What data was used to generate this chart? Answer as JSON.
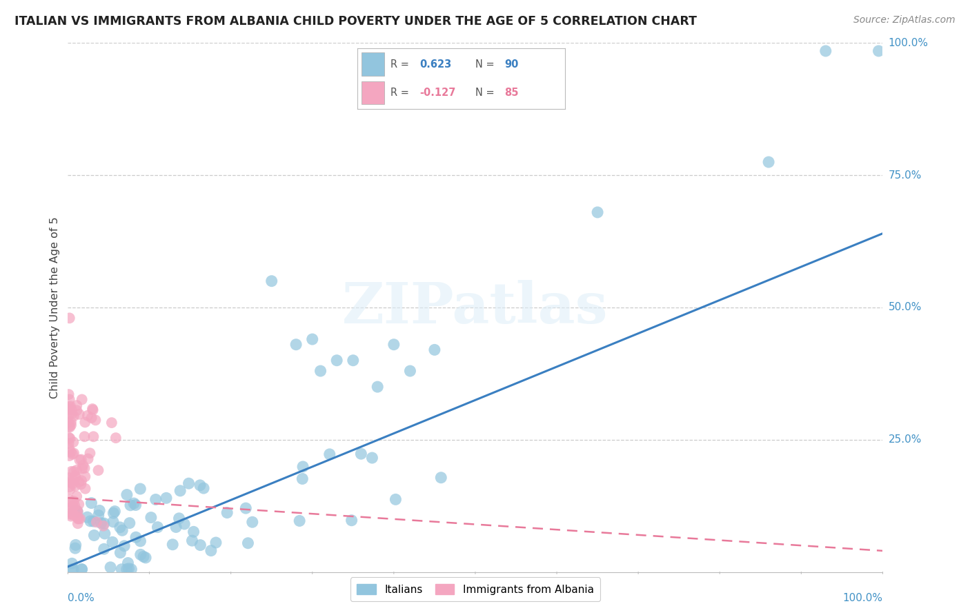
{
  "title": "ITALIAN VS IMMIGRANTS FROM ALBANIA CHILD POVERTY UNDER THE AGE OF 5 CORRELATION CHART",
  "source": "Source: ZipAtlas.com",
  "ylabel": "Child Poverty Under the Age of 5",
  "legend_italian": "Italians",
  "legend_albania": "Immigrants from Albania",
  "R_italian": 0.623,
  "N_italian": 90,
  "R_albania": -0.127,
  "N_albania": 85,
  "color_italian": "#92c5de",
  "color_albania": "#f4a6c0",
  "trendline_italian": "#3a7fc1",
  "trendline_albania": "#e8799a",
  "watermark": "ZIPatlas",
  "it_slope": 0.63,
  "it_intercept": 0.01,
  "al_slope": -0.1,
  "al_intercept": 0.14
}
